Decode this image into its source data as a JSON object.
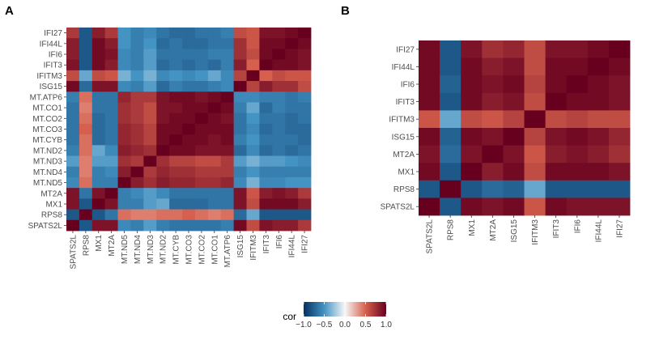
{
  "chart_data": [
    {
      "type": "heatmap",
      "panel_label": "A",
      "x_labels": [
        "SPATS2L",
        "RPS8",
        "MX1",
        "MT2A",
        "MT.ND5",
        "MT.ND4",
        "MT.ND3",
        "MT.ND2",
        "MT.CYB",
        "MT.CO3",
        "MT.CO2",
        "MT.CO1",
        "MT.ATP6",
        "ISG15",
        "IFITM3",
        "IFIT3",
        "IFI6",
        "IFI44L",
        "IFI27"
      ],
      "y_labels": [
        "IFI27",
        "IFI44L",
        "IFI6",
        "IFIT3",
        "IFITM3",
        "ISG15",
        "MT.ATP6",
        "MT.CO1",
        "MT.CO2",
        "MT.CO3",
        "MT.CYB",
        "MT.ND2",
        "MT.ND3",
        "MT.ND4",
        "MT.ND5",
        "MT2A",
        "MX1",
        "RPS8",
        "SPATS2L"
      ],
      "matrix": [
        [
          0.7,
          -0.8,
          0.85,
          0.7,
          -0.5,
          -0.6,
          -0.55,
          -0.65,
          -0.7,
          -0.7,
          -0.65,
          -0.65,
          -0.6,
          0.6,
          0.55,
          0.9,
          0.9,
          0.95,
          1.0
        ],
        [
          0.85,
          -0.8,
          0.95,
          0.85,
          -0.5,
          -0.6,
          -0.5,
          -0.7,
          -0.65,
          -0.7,
          -0.7,
          -0.65,
          -0.65,
          0.75,
          0.55,
          0.95,
          0.95,
          1.0,
          0.95
        ],
        [
          0.85,
          -0.8,
          0.95,
          0.9,
          -0.55,
          -0.6,
          -0.45,
          -0.65,
          -0.65,
          -0.65,
          -0.65,
          -0.6,
          -0.6,
          0.75,
          0.6,
          0.95,
          1.0,
          0.95,
          0.9
        ],
        [
          0.9,
          -0.8,
          0.95,
          0.85,
          -0.55,
          -0.6,
          -0.45,
          -0.7,
          -0.65,
          -0.7,
          -0.65,
          -0.7,
          -0.6,
          0.85,
          0.5,
          1.0,
          0.95,
          0.95,
          0.9
        ],
        [
          0.6,
          -0.4,
          0.6,
          0.55,
          -0.35,
          -0.5,
          -0.35,
          -0.55,
          -0.5,
          -0.55,
          -0.5,
          -0.4,
          -0.55,
          0.65,
          1.0,
          0.5,
          0.6,
          0.55,
          0.55
        ],
        [
          0.95,
          -0.7,
          0.9,
          0.9,
          -0.55,
          -0.6,
          -0.45,
          -0.7,
          -0.6,
          -0.65,
          -0.65,
          -0.6,
          -0.55,
          1.0,
          0.65,
          0.85,
          0.75,
          0.75,
          0.6
        ],
        [
          -0.6,
          0.45,
          -0.65,
          -0.65,
          0.8,
          0.7,
          0.7,
          0.9,
          0.95,
          0.95,
          0.9,
          0.95,
          1.0,
          -0.55,
          -0.55,
          -0.6,
          -0.6,
          -0.65,
          -0.6
        ],
        [
          -0.65,
          0.4,
          -0.65,
          -0.65,
          0.75,
          0.7,
          0.6,
          0.9,
          0.9,
          0.95,
          0.95,
          1.0,
          0.95,
          -0.6,
          -0.4,
          -0.7,
          -0.6,
          -0.65,
          -0.65
        ],
        [
          -0.65,
          0.45,
          -0.7,
          -0.65,
          0.75,
          0.7,
          0.6,
          0.9,
          0.95,
          0.95,
          1.0,
          0.95,
          0.9,
          -0.65,
          -0.5,
          -0.65,
          -0.65,
          -0.7,
          -0.65
        ],
        [
          -0.65,
          0.5,
          -0.7,
          -0.65,
          0.8,
          0.75,
          0.65,
          0.95,
          0.95,
          1.0,
          0.95,
          0.95,
          0.95,
          -0.65,
          -0.55,
          -0.7,
          -0.65,
          -0.7,
          -0.7
        ],
        [
          -0.65,
          0.45,
          -0.7,
          -0.65,
          0.8,
          0.75,
          0.65,
          0.95,
          1.0,
          0.95,
          0.95,
          0.9,
          0.95,
          -0.6,
          -0.5,
          -0.65,
          -0.65,
          -0.65,
          -0.7
        ],
        [
          -0.6,
          0.45,
          -0.4,
          -0.55,
          0.85,
          0.8,
          0.75,
          1.0,
          0.95,
          0.95,
          0.9,
          0.9,
          0.9,
          -0.7,
          -0.55,
          -0.7,
          -0.65,
          -0.7,
          -0.65
        ],
        [
          -0.45,
          0.4,
          -0.45,
          -0.45,
          0.75,
          0.7,
          1.0,
          0.75,
          0.65,
          0.65,
          0.6,
          0.6,
          0.7,
          -0.45,
          -0.35,
          -0.45,
          -0.45,
          -0.5,
          -0.55
        ],
        [
          -0.6,
          0.4,
          -0.6,
          -0.55,
          0.85,
          1.0,
          0.7,
          0.8,
          0.75,
          0.75,
          0.7,
          0.7,
          0.7,
          -0.6,
          -0.5,
          -0.6,
          -0.6,
          -0.6,
          -0.6
        ],
        [
          -0.55,
          0.45,
          -0.6,
          -0.6,
          1.0,
          0.85,
          0.75,
          0.85,
          0.8,
          0.8,
          0.75,
          0.75,
          0.8,
          -0.55,
          -0.35,
          -0.55,
          -0.55,
          -0.5,
          -0.5
        ],
        [
          0.9,
          -0.65,
          0.9,
          1.0,
          -0.6,
          -0.55,
          -0.45,
          -0.55,
          -0.65,
          -0.65,
          -0.65,
          -0.65,
          -0.65,
          0.9,
          0.55,
          0.85,
          0.9,
          0.85,
          0.7
        ],
        [
          0.9,
          -0.8,
          1.0,
          0.9,
          -0.6,
          -0.6,
          -0.45,
          -0.4,
          -0.7,
          -0.7,
          -0.7,
          -0.65,
          -0.65,
          0.9,
          0.6,
          0.95,
          0.95,
          0.95,
          0.85
        ],
        [
          -0.8,
          1.0,
          -0.8,
          -0.65,
          0.45,
          0.4,
          0.4,
          0.45,
          0.45,
          0.5,
          0.45,
          0.4,
          0.45,
          -0.7,
          -0.4,
          -0.8,
          -0.8,
          -0.8,
          -0.8
        ],
        [
          1.0,
          -0.8,
          0.9,
          0.9,
          -0.55,
          -0.6,
          -0.45,
          -0.6,
          -0.65,
          -0.65,
          -0.65,
          -0.65,
          -0.6,
          0.95,
          0.6,
          0.9,
          0.85,
          0.85,
          0.7
        ]
      ]
    },
    {
      "type": "heatmap",
      "panel_label": "B",
      "x_labels": [
        "SPATS2L",
        "RPS8",
        "MX1",
        "MT2A",
        "ISG15",
        "IFITM3",
        "IFIT3",
        "IFI6",
        "IFI44L",
        "IFI27"
      ],
      "y_labels": [
        "IFI27",
        "IFI44L",
        "IFI6",
        "IFIT3",
        "IFITM3",
        "ISG15",
        "MT2A",
        "MX1",
        "RPS8",
        "SPATS2L"
      ],
      "matrix": [
        [
          0.95,
          -0.8,
          0.9,
          0.75,
          0.8,
          0.6,
          0.9,
          0.9,
          0.95,
          1.0
        ],
        [
          0.95,
          -0.8,
          0.95,
          0.85,
          0.9,
          0.6,
          0.95,
          0.95,
          1.0,
          0.95
        ],
        [
          0.95,
          -0.75,
          0.95,
          0.9,
          0.95,
          0.65,
          0.95,
          1.0,
          0.95,
          0.9
        ],
        [
          0.95,
          -0.8,
          0.95,
          0.85,
          0.9,
          0.6,
          1.0,
          0.95,
          0.95,
          0.9
        ],
        [
          0.55,
          -0.4,
          0.6,
          0.55,
          0.65,
          1.0,
          0.6,
          0.65,
          0.6,
          0.6
        ],
        [
          0.95,
          -0.75,
          0.95,
          0.9,
          1.0,
          0.65,
          0.9,
          0.95,
          0.9,
          0.8
        ],
        [
          0.9,
          -0.7,
          0.9,
          1.0,
          0.9,
          0.55,
          0.85,
          0.9,
          0.85,
          0.75
        ],
        [
          0.95,
          -0.8,
          1.0,
          0.85,
          0.95,
          0.6,
          0.95,
          0.95,
          0.95,
          0.9
        ],
        [
          -0.8,
          1.0,
          -0.8,
          -0.7,
          -0.75,
          -0.4,
          -0.8,
          -0.8,
          -0.8,
          -0.8
        ],
        [
          1.0,
          -0.8,
          0.95,
          0.9,
          0.95,
          0.55,
          0.95,
          0.9,
          0.9,
          0.9
        ]
      ]
    }
  ],
  "legend": {
    "title": "cor",
    "ticks": [
      "−1.0",
      "−0.5",
      "0.0",
      "0.5",
      "1.0"
    ],
    "tick_values": [
      -1.0,
      -0.5,
      0.0,
      0.5,
      1.0
    ]
  },
  "colors": {
    "negative": "#053061",
    "mid_negative": "#4393c3",
    "neutral": "#f7f7f7",
    "mid_positive": "#d6604d",
    "positive": "#67001f"
  }
}
